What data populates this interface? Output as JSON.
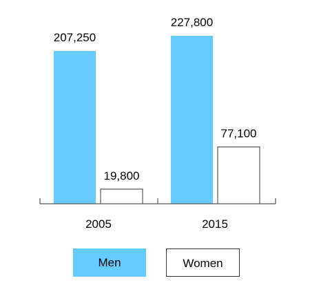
{
  "chart_data": {
    "type": "bar",
    "categories": [
      "2005",
      "2015"
    ],
    "series": [
      {
        "name": "Men",
        "values": [
          207250,
          227800
        ],
        "labels": [
          "207,250",
          "227,800"
        ],
        "color": "#66ccff"
      },
      {
        "name": "Women",
        "values": [
          19800,
          77100
        ],
        "labels": [
          "19,800",
          "77,100"
        ],
        "color": "#ffffff"
      }
    ],
    "title": "",
    "xlabel": "",
    "ylabel": "",
    "ylim": [
      0,
      227800
    ],
    "grid": false,
    "legend": "bottom",
    "axis_color": "#555555",
    "bar_border_color": "#333333"
  }
}
